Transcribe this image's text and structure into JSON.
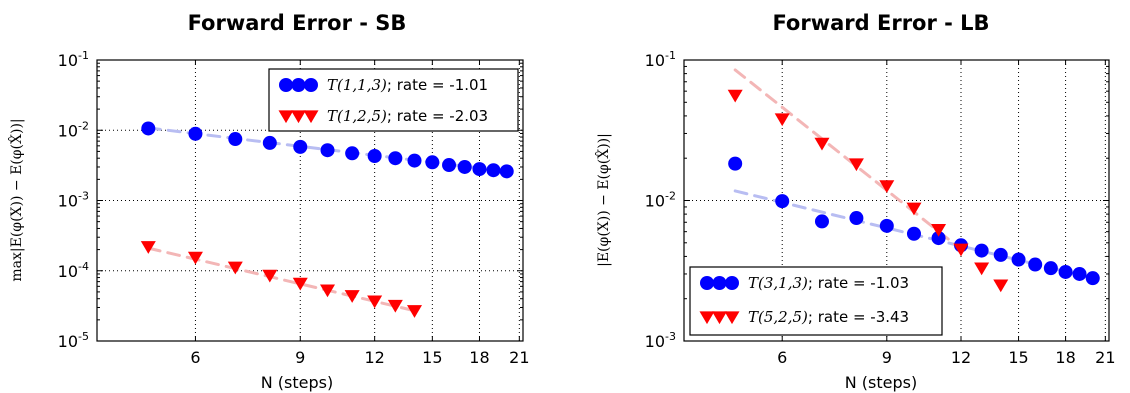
{
  "chart_data": [
    {
      "type": "scatter",
      "title": "Forward Error - SB",
      "xlabel": "N (steps)",
      "ylabel": "max|E(φ(X)) − E(φ(X̂))|",
      "x_scale": "log",
      "y_scale": "log",
      "xlim": [
        4.1,
        21.3
      ],
      "ylim": [
        1e-05,
        0.1
      ],
      "x_ticks": [
        6,
        9,
        12,
        15,
        18,
        21
      ],
      "x_tick_labels": [
        "6",
        "9",
        "12",
        "15",
        "18",
        "21"
      ],
      "y_ticks": [
        1e-05,
        0.0001,
        0.001,
        0.01,
        0.1
      ],
      "y_tick_labels": [
        {
          "base": "10",
          "exp": "-5"
        },
        {
          "base": "10",
          "exp": "-4"
        },
        {
          "base": "10",
          "exp": "-3"
        },
        {
          "base": "10",
          "exp": "-2"
        },
        {
          "base": "10",
          "exp": "-1"
        }
      ],
      "grid": true,
      "legend_position": "top-right",
      "series": [
        {
          "name_math": "T(1,1,3)",
          "name_rate": "; rate = -1.01",
          "color": "#0000ff",
          "marker": "circle",
          "x": [
            5,
            6,
            7,
            8,
            9,
            10,
            11,
            12,
            13,
            14,
            15,
            16,
            17,
            18,
            19,
            20
          ],
          "y": [
            0.0106,
            0.0089,
            0.0075,
            0.0066,
            0.0058,
            0.0052,
            0.0047,
            0.0043,
            0.004,
            0.0037,
            0.0035,
            0.0032,
            0.003,
            0.0028,
            0.0027,
            0.0026
          ],
          "fit": {
            "x": [
              5,
              20
            ],
            "y": [
              0.0108,
              0.0026
            ],
            "color": "#b8bdf2"
          }
        },
        {
          "name_math": "T(1,2,5)",
          "name_rate": "; rate = -2.03",
          "color": "#ff0000",
          "marker": "triangle-down",
          "x": [
            5,
            6,
            7,
            8,
            9,
            10,
            11,
            12,
            13,
            14
          ],
          "y": [
            0.00022,
            0.000155,
            0.000112,
            8.6e-05,
            6.6e-05,
            5.3e-05,
            4.4e-05,
            3.7e-05,
            3.2e-05,
            2.7e-05
          ],
          "fit": {
            "x": [
              5,
              14
            ],
            "y": [
              0.00021,
              2.7e-05
            ],
            "color": "#f3b6b6"
          }
        }
      ]
    },
    {
      "type": "scatter",
      "title": "Forward Error - LB",
      "xlabel": "N (steps)",
      "ylabel": "|E(φ(X)) − E(φ(X̂))|",
      "x_scale": "log",
      "y_scale": "log",
      "xlim": [
        4.1,
        21.3
      ],
      "ylim": [
        0.001,
        0.1
      ],
      "x_ticks": [
        6,
        9,
        12,
        15,
        18,
        21
      ],
      "x_tick_labels": [
        "6",
        "9",
        "12",
        "15",
        "18",
        "21"
      ],
      "y_ticks": [
        0.001,
        0.01,
        0.1
      ],
      "y_tick_labels": [
        {
          "base": "10",
          "exp": "-3"
        },
        {
          "base": "10",
          "exp": "-2"
        },
        {
          "base": "10",
          "exp": "-1"
        }
      ],
      "grid": true,
      "legend_position": "bottom-right",
      "series": [
        {
          "name_math": "T(3,1,3)",
          "name_rate": "; rate = -1.03",
          "color": "#0000ff",
          "marker": "circle",
          "x": [
            5,
            6,
            7,
            8,
            9,
            10,
            11,
            12,
            13,
            14,
            15,
            16,
            17,
            18,
            19,
            20
          ],
          "y": [
            0.0183,
            0.0099,
            0.0071,
            0.0075,
            0.0066,
            0.0058,
            0.0054,
            0.0048,
            0.0044,
            0.0041,
            0.0038,
            0.0035,
            0.0033,
            0.0031,
            0.003,
            0.0028
          ],
          "fit": {
            "x": [
              5,
              20
            ],
            "y": [
              0.0117,
              0.0028
            ],
            "color": "#b8bdf2"
          }
        },
        {
          "name_math": "T(5,2,5)",
          "name_rate": "; rate = -3.43",
          "color": "#ff0000",
          "marker": "triangle-down",
          "x": [
            5,
            6,
            7,
            8,
            9,
            10,
            11,
            12,
            13,
            14
          ],
          "y": [
            0.056,
            0.038,
            0.0255,
            0.0182,
            0.0127,
            0.0088,
            0.0062,
            0.0045,
            0.0033,
            0.0025
          ],
          "fit": {
            "x": [
              5,
              12
            ],
            "y": [
              0.085,
              0.0045
            ],
            "color": "#f3b6b6"
          }
        }
      ]
    }
  ]
}
